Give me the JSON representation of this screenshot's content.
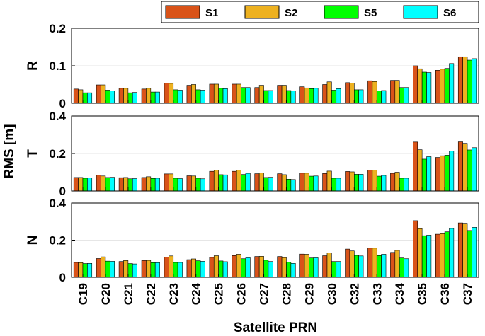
{
  "chart_data": {
    "type": "bar",
    "xlabel": "Satellite PRN",
    "ylabel": "RMS [m]",
    "categories": [
      "C19",
      "C20",
      "C21",
      "C22",
      "C23",
      "C24",
      "C25",
      "C26",
      "C27",
      "C28",
      "C29",
      "C30",
      "C32",
      "C33",
      "C34",
      "C35",
      "C36",
      "C37"
    ],
    "legend": {
      "placement": "top",
      "entries": [
        {
          "name": "S1",
          "color": "#D95319"
        },
        {
          "name": "S2",
          "color": "#EDB120"
        },
        {
          "name": "S5",
          "color": "#00FF00"
        },
        {
          "name": "S6",
          "color": "#00FFFF"
        }
      ]
    },
    "grid": true,
    "panels": [
      {
        "label": "R",
        "ylim": [
          0,
          0.2
        ],
        "yticks": [
          "0",
          "0.1",
          "0.2"
        ],
        "series": [
          {
            "name": "S1",
            "values": [
              0.038,
              0.049,
              0.04,
              0.038,
              0.054,
              0.048,
              0.051,
              0.051,
              0.042,
              0.048,
              0.044,
              0.05,
              0.055,
              0.06,
              0.061,
              0.1,
              0.088,
              0.124
            ]
          },
          {
            "name": "S2",
            "values": [
              0.036,
              0.049,
              0.04,
              0.04,
              0.053,
              0.05,
              0.051,
              0.051,
              0.048,
              0.048,
              0.041,
              0.057,
              0.054,
              0.058,
              0.061,
              0.092,
              0.091,
              0.124
            ]
          },
          {
            "name": "S5",
            "values": [
              0.028,
              0.035,
              0.028,
              0.03,
              0.036,
              0.036,
              0.04,
              0.042,
              0.034,
              0.034,
              0.039,
              0.035,
              0.036,
              0.033,
              0.042,
              0.083,
              0.093,
              0.115
            ]
          },
          {
            "name": "S6",
            "values": [
              0.028,
              0.033,
              0.029,
              0.03,
              0.035,
              0.035,
              0.039,
              0.042,
              0.034,
              0.033,
              0.04,
              0.039,
              0.036,
              0.034,
              0.042,
              0.082,
              0.106,
              0.119
            ]
          }
        ]
      },
      {
        "label": "T",
        "ylim": [
          0,
          0.4
        ],
        "yticks": [
          "0",
          "0.2",
          "0.4"
        ],
        "series": [
          {
            "name": "S1",
            "values": [
              0.072,
              0.084,
              0.071,
              0.072,
              0.091,
              0.081,
              0.105,
              0.105,
              0.092,
              0.092,
              0.095,
              0.093,
              0.104,
              0.112,
              0.094,
              0.261,
              0.179,
              0.262
            ]
          },
          {
            "name": "S2",
            "values": [
              0.072,
              0.08,
              0.072,
              0.076,
              0.091,
              0.08,
              0.111,
              0.112,
              0.096,
              0.087,
              0.095,
              0.106,
              0.102,
              0.112,
              0.1,
              0.22,
              0.188,
              0.254
            ]
          },
          {
            "name": "S5",
            "values": [
              0.068,
              0.072,
              0.065,
              0.067,
              0.068,
              0.068,
              0.087,
              0.088,
              0.072,
              0.063,
              0.079,
              0.068,
              0.089,
              0.079,
              0.068,
              0.17,
              0.191,
              0.219
            ]
          },
          {
            "name": "S6",
            "values": [
              0.069,
              0.073,
              0.066,
              0.068,
              0.066,
              0.065,
              0.086,
              0.094,
              0.073,
              0.061,
              0.08,
              0.068,
              0.089,
              0.083,
              0.068,
              0.183,
              0.213,
              0.231
            ]
          }
        ]
      },
      {
        "label": "N",
        "ylim": [
          0,
          0.4
        ],
        "yticks": [
          "0",
          "0.2",
          "0.4"
        ],
        "series": [
          {
            "name": "S1",
            "values": [
              0.08,
              0.101,
              0.085,
              0.09,
              0.109,
              0.095,
              0.107,
              0.117,
              0.112,
              0.112,
              0.125,
              0.116,
              0.152,
              0.157,
              0.134,
              0.305,
              0.232,
              0.293
            ]
          },
          {
            "name": "S2",
            "values": [
              0.079,
              0.11,
              0.09,
              0.091,
              0.115,
              0.099,
              0.116,
              0.124,
              0.113,
              0.106,
              0.124,
              0.132,
              0.142,
              0.157,
              0.145,
              0.262,
              0.235,
              0.291
            ]
          },
          {
            "name": "S5",
            "values": [
              0.074,
              0.087,
              0.074,
              0.079,
              0.08,
              0.089,
              0.088,
              0.1,
              0.092,
              0.081,
              0.104,
              0.085,
              0.118,
              0.117,
              0.104,
              0.224,
              0.245,
              0.252
            ]
          },
          {
            "name": "S6",
            "values": [
              0.075,
              0.086,
              0.072,
              0.079,
              0.08,
              0.086,
              0.084,
              0.105,
              0.085,
              0.075,
              0.105,
              0.085,
              0.115,
              0.124,
              0.1,
              0.227,
              0.263,
              0.269
            ]
          }
        ]
      }
    ]
  }
}
